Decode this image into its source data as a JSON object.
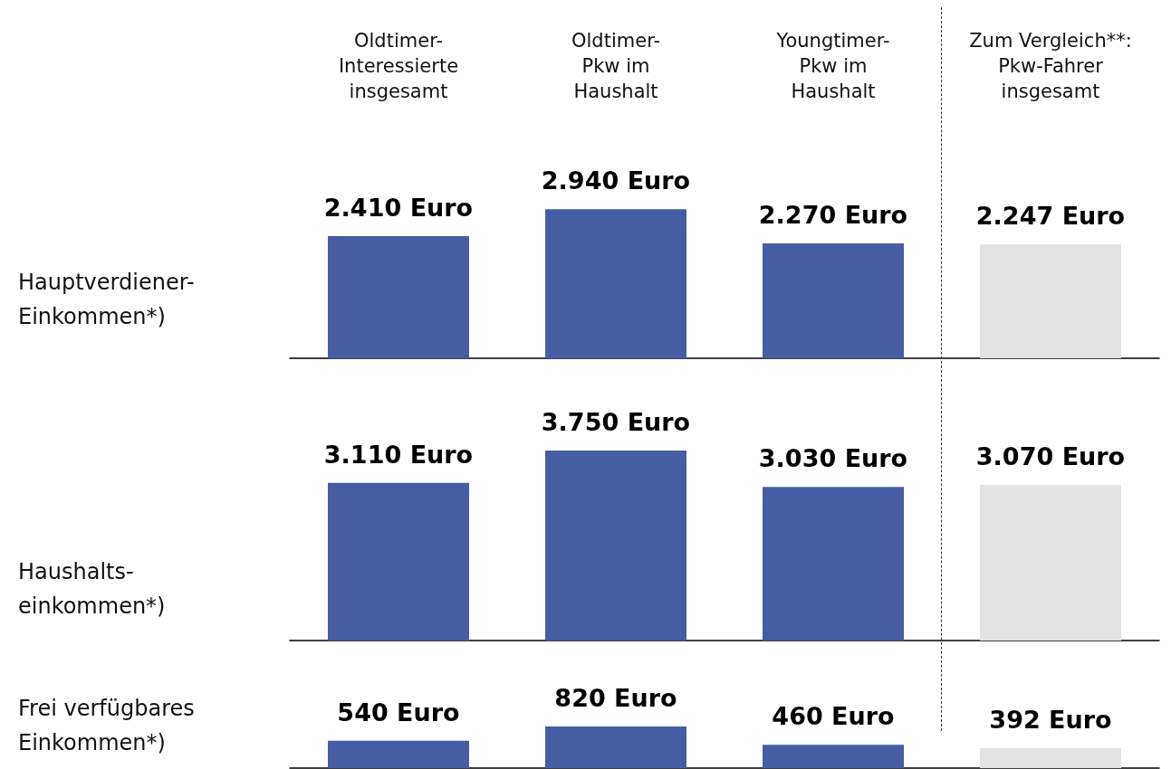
{
  "chart_data": [
    {
      "type": "bar",
      "ylabel": "Hauptverdiener-\nEinkommen*)",
      "categories": [
        "Oldtimer-\nInteressierte\ninsgesamt",
        "Oldtimer-\nPkw im\nHaushalt",
        "Youngtimer-\nPkw im\nHaushalt",
        "Zum Vergleich**:\nPkw-Fahrer\ninsgesamt"
      ],
      "tick_labels": "x",
      "values": [
        2410,
        2940,
        2270,
        2247
      ],
      "colors": [
        "#465da3",
        "#465da3",
        "#465da3",
        "#e3e3e3"
      ],
      "value_labels": [
        "2.410 Euro",
        "2.940 Euro",
        "2.270 Euro",
        "2.247 Euro"
      ]
    },
    {
      "type": "bar",
      "ylabel": "Haushalts-\neinkommen*)",
      "categories": [
        null,
        null,
        null,
        null
      ],
      "values": [
        3110,
        3750,
        3030,
        3070
      ],
      "colors": [
        "#465da3",
        "#465da3",
        "#465da3",
        "#e3e3e3"
      ],
      "value_labels": [
        "3.110 Euro",
        "3.750 Euro",
        "3.030 Euro",
        "3.070 Euro"
      ]
    },
    {
      "type": "bar",
      "ylabel": "Frei verfügbares\nEinkommen*)",
      "categories": [
        null,
        null,
        null,
        null
      ],
      "values": [
        540,
        820,
        460,
        392
      ],
      "colors": [
        "#465da3",
        "#465da3",
        "#465da3",
        "#e3e3e3"
      ],
      "value_labels": [
        "540 Euro",
        "820 Euro",
        "460 Euro",
        "392 Euro"
      ]
    }
  ]
}
